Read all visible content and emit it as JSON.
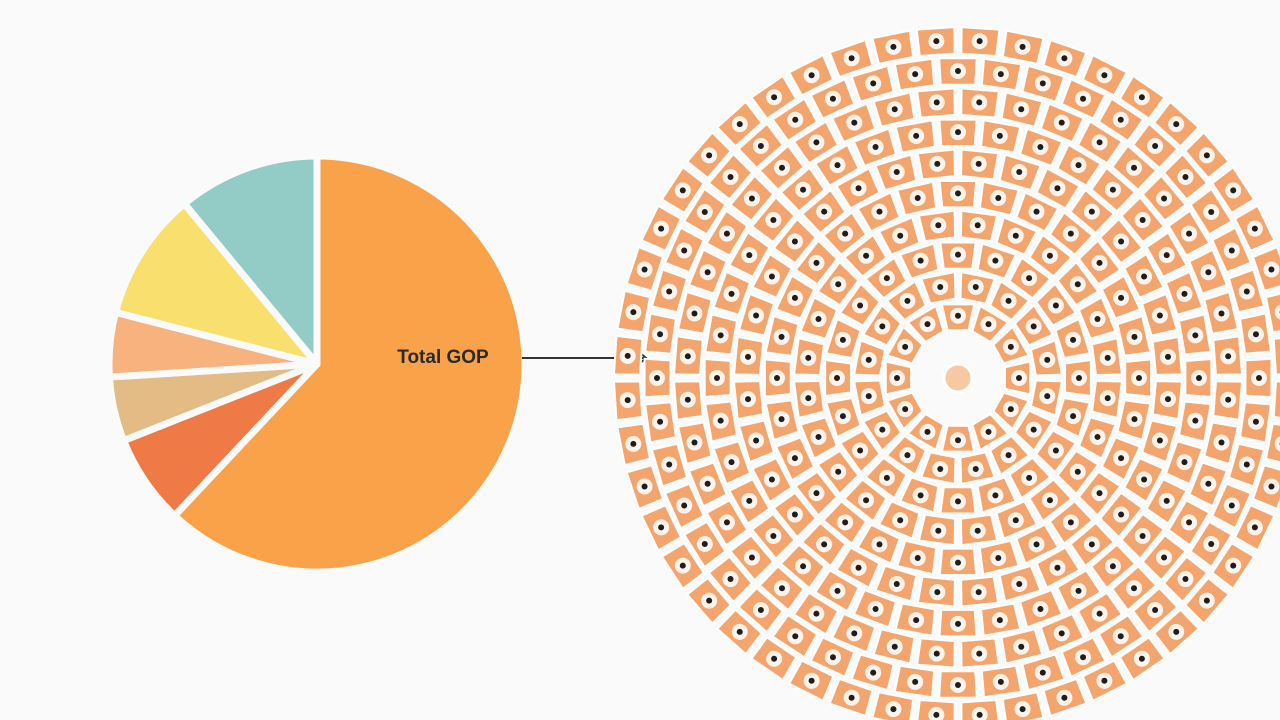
{
  "chart_data": {
    "type": "pie",
    "annotation": "Total GOP",
    "values": [
      62,
      7,
      5,
      5,
      10,
      11
    ],
    "colors": [
      "#f9a24a",
      "#f07a45",
      "#e3bb85",
      "#f8b27e",
      "#f8df6e",
      "#93cbc6"
    ]
  }
}
